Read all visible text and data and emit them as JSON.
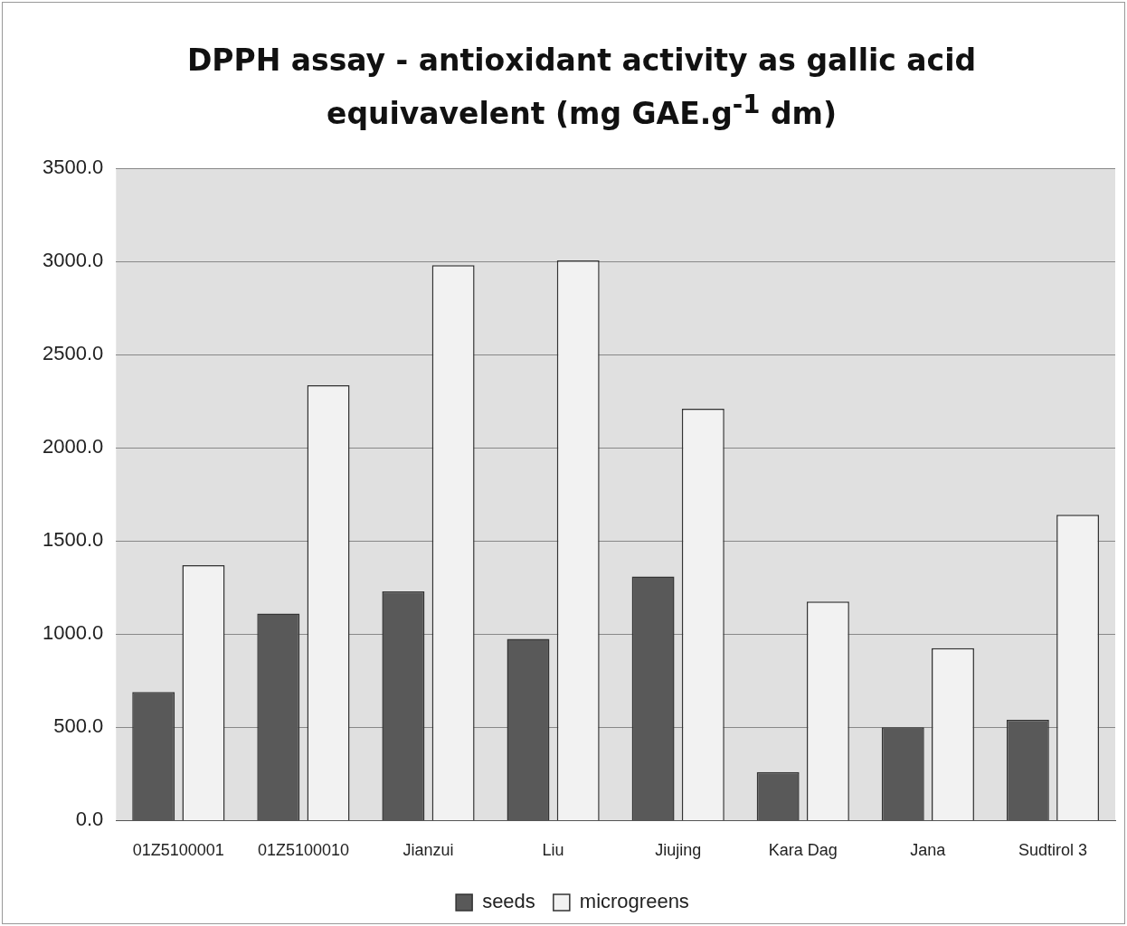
{
  "chart_data": {
    "type": "bar",
    "title": "DPPH assay - antioxidant activity as gallic acid equivavelent (mg GAE.g$^{-1}$ dm)",
    "categories": [
      "01Z5100001",
      "01Z5100010",
      "Jianzui",
      "Liu",
      "Jiujing",
      "Kara Dag",
      "Jana",
      "Sudtirol 3"
    ],
    "series": [
      {
        "name": "seeds",
        "color": "#595959",
        "values": [
          690,
          1110,
          1230,
          975,
          1310,
          260,
          500,
          540
        ]
      },
      {
        "name": "microgreens",
        "color": "#f2f2f2",
        "values": [
          1370,
          2335,
          2980,
          3005,
          2210,
          1175,
          925,
          1640
        ]
      }
    ],
    "ylim": [
      0,
      3500
    ],
    "yticks": [
      {
        "value": 0,
        "label": "0.0"
      },
      {
        "value": 500,
        "label": "500.0"
      },
      {
        "value": 1000,
        "label": "1000.0"
      },
      {
        "value": 1500,
        "label": "1500.0"
      },
      {
        "value": 2000,
        "label": "2000.0"
      },
      {
        "value": 2500,
        "label": "2500.0"
      },
      {
        "value": 3000,
        "label": "3000.0"
      },
      {
        "value": 3500,
        "label": "3500.0"
      }
    ],
    "grid": "y",
    "legend": "bottom"
  }
}
